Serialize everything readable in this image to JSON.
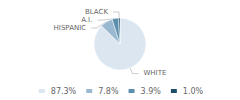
{
  "chart_data": {
    "type": "pie",
    "categories": [
      "WHITE",
      "HISPANIC",
      "A.I.",
      "BLACK"
    ],
    "values": [
      87.3,
      7.8,
      3.9,
      1.0
    ],
    "value_labels": [
      "87.3%",
      "7.8%",
      "3.9%",
      "1.0%"
    ],
    "colors": [
      "#dce6f0",
      "#9ab8d0",
      "#5b8fad",
      "#1f4e6b"
    ],
    "legend": "bottom"
  }
}
